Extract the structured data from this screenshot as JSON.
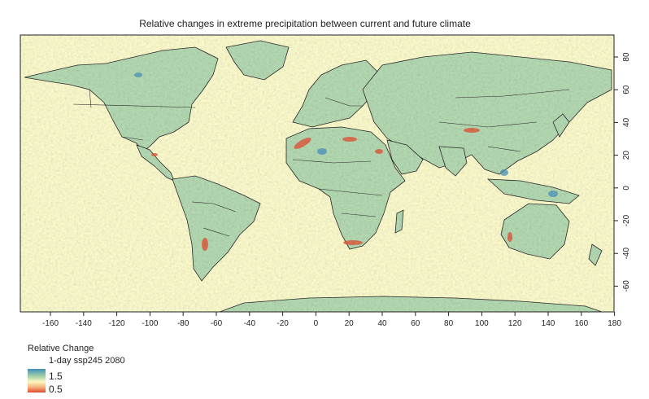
{
  "title": "Relative changes in extreme precipitation between current and future climate",
  "colors": {
    "ocean": "#fffec8",
    "land": "#b7ddb5",
    "land_dark": "#8ec8ae",
    "border": "#2a2a2a",
    "hot": "#e4573a",
    "cool": "#4b94c0"
  },
  "x_ticks": [
    "-160",
    "-140",
    "-120",
    "-100",
    "-80",
    "-60",
    "-40",
    "-20",
    "0",
    "20",
    "40",
    "60",
    "80",
    "100",
    "120",
    "140",
    "160",
    "180"
  ],
  "y_ticks": [
    "80",
    "60",
    "40",
    "20",
    "0",
    "-20",
    "-40",
    "-60"
  ],
  "legend": {
    "title": "Relative Change",
    "subtitle": "1-day ssp245 2080",
    "max_label": "1.5",
    "min_label": "0.5"
  }
}
